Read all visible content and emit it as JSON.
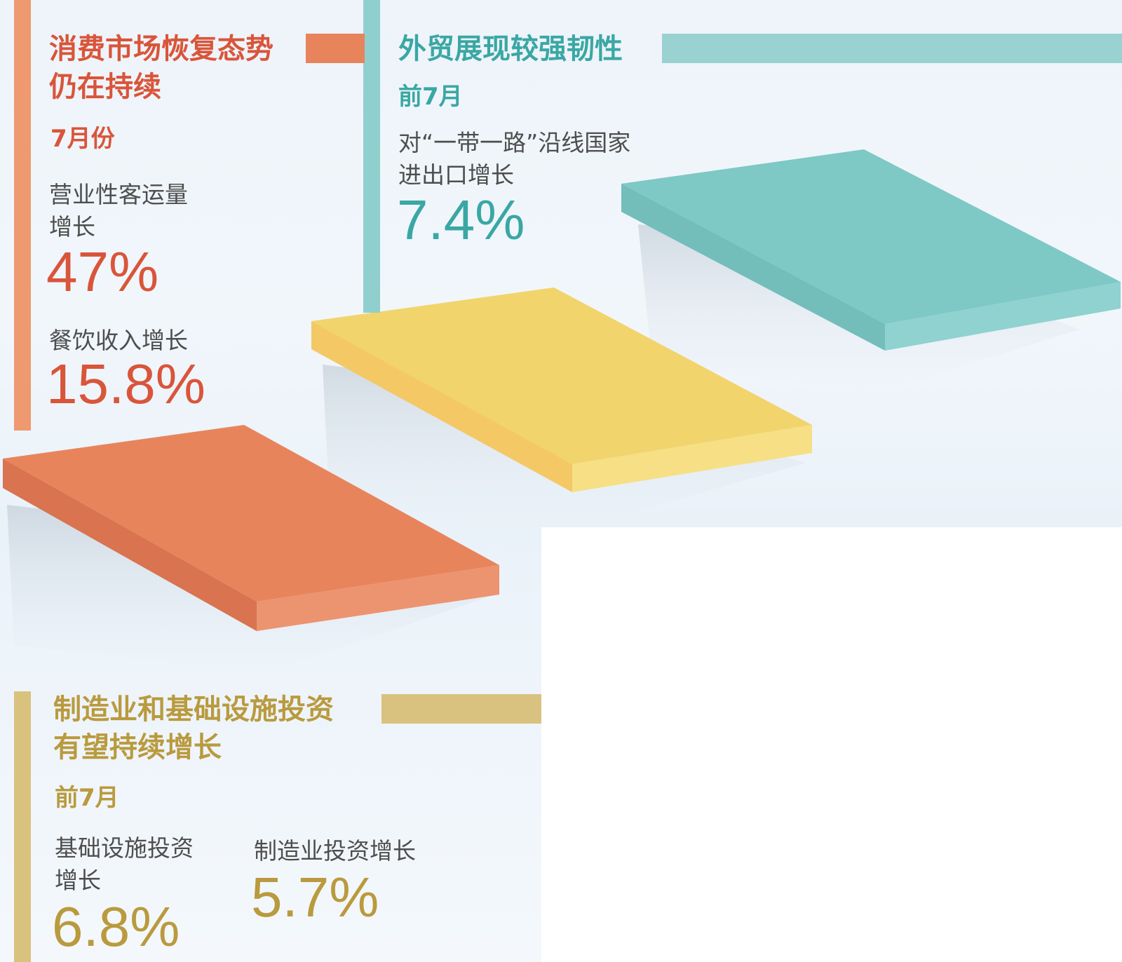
{
  "consumption": {
    "title_line1": "消费市场恢复态势",
    "title_line2": "仍在持续",
    "period": "7月份",
    "passenger_label_line1": "营业性客运量",
    "passenger_label_line2": "增长",
    "passenger_value": "47%",
    "catering_label": "餐饮收入增长",
    "catering_value": "15.8%"
  },
  "trade": {
    "title": "外贸展现较强韧性",
    "period": "前7月",
    "label_line1": "对“一带一路”沿线国家",
    "label_line2": "进出口增长",
    "value": "7.4%"
  },
  "investment": {
    "title_line1": "制造业和基础设施投资",
    "title_line2": "有望持续增长",
    "period": "前7月",
    "infra_label_line1": "基础设施投资",
    "infra_label_line2": "增长",
    "infra_value": "6.8%",
    "manufacturing_label": "制造业投资增长",
    "manufacturing_value": "5.7%"
  },
  "colors": {
    "orange": "#e8845c",
    "yellow": "#f2d46c",
    "teal": "#7ec8c6",
    "gold": "#d8c27e"
  }
}
